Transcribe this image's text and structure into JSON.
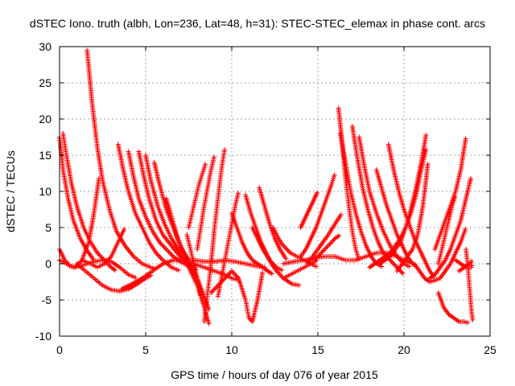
{
  "chart_data": {
    "type": "scatter",
    "title": "dSTEC Iono. truth (albh, Lon=236, Lat=48, h=31): STEC-STEC_elemax in phase cont. arcs",
    "xlabel": "GPS time / hours of day 076 of year 2015",
    "ylabel": "dSTEC  / TECUs",
    "xlim": [
      0,
      25
    ],
    "ylim": [
      -10,
      30
    ],
    "xticks": [
      "0",
      "5",
      "10",
      "15",
      "20",
      "25"
    ],
    "yticks": [
      "-10",
      "-5",
      "0",
      "5",
      "10",
      "15",
      "20",
      "25",
      "30"
    ],
    "grid": true,
    "marker": "+",
    "color": "#ff0000",
    "arcs": [
      {
        "x": [
          0,
          0.3,
          0.6,
          0.9,
          1.3,
          1.7,
          2.0,
          2.3
        ],
        "y": [
          2.0,
          0.5,
          -0.3,
          -0.5,
          0.5,
          3.0,
          7.0,
          12.0
        ]
      },
      {
        "x": [
          0,
          0.2,
          0.5,
          0.8,
          1.2,
          1.6,
          2.0
        ],
        "y": [
          17.5,
          13.0,
          9.0,
          6.0,
          3.5,
          1.8,
          0.5
        ]
      },
      {
        "x": [
          0.2,
          0.4,
          0.7,
          1.0,
          1.4,
          1.8,
          2.2,
          2.6,
          3.0,
          3.3
        ],
        "y": [
          18.0,
          15.0,
          11.0,
          8.0,
          5.0,
          3.0,
          1.5,
          0.5,
          -0.5,
          -1.0
        ]
      },
      {
        "x": [
          1.6,
          1.9,
          2.2,
          2.5,
          2.9,
          3.3,
          3.8,
          4.3,
          4.8,
          5.3,
          5.6
        ],
        "y": [
          29.5,
          22.0,
          16.0,
          11.5,
          7.5,
          4.5,
          2.5,
          1.0,
          0.0,
          -0.5,
          -0.8
        ]
      },
      {
        "x": [
          0,
          0.4,
          0.8,
          1.2,
          1.6,
          2.0,
          2.5,
          3.0,
          3.5,
          4.0,
          4.5
        ],
        "y": [
          0.5,
          0.0,
          -0.5,
          -0.3,
          0.0,
          0.3,
          0.5,
          0.3,
          -0.5,
          -1.5,
          -2.0
        ]
      },
      {
        "x": [
          1.0,
          1.5,
          2.0,
          2.5,
          3.0,
          3.5,
          4.0,
          4.5,
          5.0,
          5.4
        ],
        "y": [
          0,
          -1.0,
          -2.0,
          -3.0,
          -3.6,
          -3.8,
          -3.5,
          -2.8,
          -2.0,
          -1.5
        ]
      },
      {
        "x": [
          1.3,
          1.8,
          2.2,
          2.6,
          3.0,
          3.4,
          3.8
        ],
        "y": [
          0.5,
          0.0,
          -0.5,
          0.0,
          1.0,
          3.0,
          5.0
        ]
      },
      {
        "x": [
          3.4,
          3.7,
          4.0,
          4.4,
          4.8,
          5.2,
          5.6,
          6.0,
          6.5,
          7.0
        ],
        "y": [
          16.5,
          13.0,
          10.0,
          7.0,
          5.0,
          3.0,
          1.5,
          0.5,
          -0.5,
          -1.0
        ]
      },
      {
        "x": [
          4.0,
          4.3,
          4.6,
          5.0,
          5.4,
          5.8,
          6.2,
          6.6,
          7.0,
          7.4,
          7.8
        ],
        "y": [
          15.5,
          12.0,
          9.0,
          6.5,
          4.5,
          3.0,
          2.0,
          1.0,
          0.3,
          -0.2,
          -0.5
        ]
      },
      {
        "x": [
          4.6,
          4.9,
          5.2,
          5.6,
          6.0,
          6.5,
          7.0,
          7.5,
          8.0
        ],
        "y": [
          15.5,
          12.0,
          9.0,
          6.0,
          4.0,
          2.5,
          1.0,
          0.0,
          -1.0
        ]
      },
      {
        "x": [
          5.0,
          5.3,
          5.7,
          6.1,
          6.5,
          7.0,
          7.5,
          8.0,
          8.4,
          8.7
        ],
        "y": [
          15.0,
          11.5,
          8.0,
          5.5,
          3.5,
          1.5,
          -0.5,
          -3.0,
          -6.0,
          -8.5
        ]
      },
      {
        "x": [
          5.5,
          5.8,
          6.2,
          6.6,
          7.0,
          7.5,
          8.0,
          8.4,
          8.7
        ],
        "y": [
          14.0,
          11.0,
          7.5,
          5.0,
          2.5,
          0.5,
          -2.0,
          -4.5,
          -6.5
        ]
      },
      {
        "x": [
          6.2,
          6.5,
          6.8,
          7.1,
          7.4,
          7.7,
          8.0
        ],
        "y": [
          9.0,
          6.5,
          4.0,
          2.0,
          0.5,
          -1.0,
          -2.0
        ]
      },
      {
        "x": [
          3.6,
          4.2,
          4.8,
          5.4,
          6.0,
          6.6,
          7.2,
          7.8,
          8.4,
          9.0,
          9.6,
          10.0,
          10.5
        ],
        "y": [
          -3.5,
          -2.8,
          -2.0,
          -1.0,
          0.0,
          0.5,
          0.5,
          0.0,
          -0.5,
          -1.0,
          -1.5,
          -2.0,
          -2.3
        ]
      },
      {
        "x": [
          6.0,
          6.6,
          7.2,
          7.8,
          8.4,
          9.0,
          9.6,
          10.2,
          10.8,
          11.4,
          12.0
        ],
        "y": [
          0.0,
          0.5,
          0.5,
          0.5,
          0.3,
          0.3,
          0.5,
          0.3,
          0.0,
          -0.3,
          -0.5
        ]
      },
      {
        "x": [
          7.4,
          7.6,
          7.8,
          8.0,
          8.2
        ],
        "y": [
          4.0,
          2.0,
          0.0,
          -2.0,
          -4.5
        ]
      },
      {
        "x": [
          8.4,
          8.6,
          8.8,
          9.0,
          9.2,
          9.4,
          9.6
        ],
        "y": [
          -8.0,
          -4.0,
          0.0,
          5.0,
          9.0,
          13.0,
          16.0
        ]
      },
      {
        "x": [
          8.0,
          8.2,
          8.4,
          8.6,
          8.8,
          9.0
        ],
        "y": [
          2.0,
          5.0,
          8.0,
          10.5,
          13.0,
          15.0
        ]
      },
      {
        "x": [
          7.5,
          7.7,
          7.9,
          8.1,
          8.3,
          8.5
        ],
        "y": [
          5.0,
          7.0,
          9.0,
          11.0,
          12.5,
          14.0
        ]
      },
      {
        "x": [
          9.2,
          9.4,
          9.6,
          9.8,
          10.0,
          10.2,
          10.4
        ],
        "y": [
          -4.5,
          -2.0,
          0.5,
          3.0,
          5.5,
          8.0,
          10.0
        ]
      },
      {
        "x": [
          8.8,
          9.2,
          9.6,
          10.0,
          10.4,
          10.8,
          11.0,
          11.2,
          11.5,
          11.8
        ],
        "y": [
          -4.0,
          -3.0,
          -2.0,
          -1.0,
          -2.0,
          -5.0,
          -7.5,
          -8.0,
          -5.0,
          -1.0
        ]
      },
      {
        "x": [
          10.0,
          10.3,
          10.6,
          10.9,
          11.2,
          11.5,
          11.8,
          12.1,
          12.4
        ],
        "y": [
          7.0,
          5.0,
          3.0,
          1.5,
          0.5,
          0.0,
          -0.5,
          -1.0,
          -1.5
        ]
      },
      {
        "x": [
          10.8,
          11.1,
          11.4,
          11.7,
          12.0,
          12.3,
          12.6,
          13.0,
          13.5,
          14.0
        ],
        "y": [
          9.5,
          7.0,
          5.0,
          3.0,
          1.5,
          0.0,
          -1.0,
          -2.0,
          -2.8,
          -3.0
        ]
      },
      {
        "x": [
          11.2,
          11.5,
          11.8,
          12.2,
          12.6,
          13.0
        ],
        "y": [
          5.0,
          3.5,
          2.0,
          0.5,
          -0.5,
          -1.0
        ]
      },
      {
        "x": [
          11.6,
          11.9,
          12.2,
          12.5,
          12.8,
          13.2
        ],
        "y": [
          10.5,
          8.0,
          5.5,
          3.5,
          2.0,
          0.5
        ]
      },
      {
        "x": [
          12.4,
          12.7,
          13.0,
          13.4,
          13.8,
          14.2,
          14.6,
          15.0
        ],
        "y": [
          5.0,
          3.5,
          2.5,
          1.5,
          1.0,
          0.5,
          0.0,
          -0.5
        ]
      },
      {
        "x": [
          13.0,
          13.4,
          13.8,
          14.2,
          14.6,
          15.0
        ],
        "y": [
          -2.0,
          -1.5,
          -1.0,
          -0.5,
          0.0,
          0.5
        ]
      },
      {
        "x": [
          14.0,
          14.3,
          14.6,
          14.9,
          15.2,
          15.5,
          15.8,
          16.0
        ],
        "y": [
          1.0,
          2.0,
          3.5,
          5.0,
          7.0,
          9.0,
          11.0,
          12.5
        ]
      },
      {
        "x": [
          14.4,
          14.7,
          15.0,
          15.3,
          15.6,
          16.0,
          16.4
        ],
        "y": [
          0.0,
          1.0,
          2.0,
          3.0,
          4.0,
          5.5,
          7.0
        ]
      },
      {
        "x": [
          14.0,
          14.2,
          14.4,
          14.6,
          14.8,
          15.0
        ],
        "y": [
          5.0,
          6.0,
          7.0,
          8.0,
          9.0,
          10.0
        ]
      },
      {
        "x": [
          13.0,
          13.6,
          14.2,
          14.8,
          15.4,
          16.0,
          16.6,
          17.2,
          17.8,
          18.4,
          19.0,
          19.6,
          20.0,
          20.4
        ],
        "y": [
          0.0,
          0.3,
          0.5,
          0.8,
          1.0,
          1.0,
          0.5,
          0.5,
          1.0,
          1.5,
          1.5,
          1.0,
          0.5,
          0.0
        ]
      },
      {
        "x": [
          14.8,
          15.2,
          15.6,
          16.0,
          16.3
        ],
        "y": [
          0.5,
          1.5,
          2.5,
          3.5,
          4.0
        ]
      },
      {
        "x": [
          16.2,
          16.4,
          16.6,
          16.8,
          17.0,
          17.2,
          17.4
        ],
        "y": [
          21.5,
          17.0,
          12.0,
          8.0,
          4.5,
          2.0,
          0.5
        ]
      },
      {
        "x": [
          16.3,
          16.6,
          16.9,
          17.2,
          17.5,
          17.8,
          18.1,
          18.4,
          18.8
        ],
        "y": [
          18.0,
          14.0,
          10.0,
          7.0,
          4.5,
          2.5,
          1.0,
          0.0,
          -0.5
        ]
      },
      {
        "x": [
          17.0,
          17.3,
          17.6,
          17.9,
          18.2,
          18.5,
          18.8,
          19.2,
          19.6,
          20.0
        ],
        "y": [
          19.0,
          14.5,
          10.5,
          7.5,
          5.0,
          3.0,
          1.5,
          0.5,
          -0.5,
          -1.5
        ]
      },
      {
        "x": [
          17.4,
          17.7,
          18.0,
          18.4,
          18.8,
          19.2,
          19.6,
          20.0,
          20.4
        ],
        "y": [
          17.5,
          13.5,
          10.0,
          7.0,
          4.5,
          2.5,
          1.0,
          0.0,
          -0.5
        ]
      },
      {
        "x": [
          18.4,
          18.7,
          19.0,
          19.3,
          19.6,
          19.9,
          20.2,
          20.5,
          20.8
        ],
        "y": [
          13.0,
          10.5,
          8.0,
          6.0,
          4.0,
          2.5,
          1.0,
          0.0,
          -0.5
        ]
      },
      {
        "x": [
          19.1,
          19.4,
          19.7,
          20.0,
          20.3,
          20.6,
          20.9,
          21.2,
          21.5,
          21.8
        ],
        "y": [
          16.5,
          13.0,
          10.0,
          7.5,
          5.5,
          3.5,
          2.0,
          0.5,
          -1.0,
          -2.0
        ]
      },
      {
        "x": [
          18.0,
          18.3,
          18.6,
          18.9,
          19.2,
          19.5,
          19.8,
          20.1,
          20.4,
          20.7,
          21.0,
          21.3
        ],
        "y": [
          -0.5,
          0.0,
          0.5,
          1.0,
          1.5,
          2.5,
          3.5,
          5.0,
          7.5,
          10.5,
          14.0,
          18.0
        ]
      },
      {
        "x": [
          18.6,
          18.9,
          19.2,
          19.5,
          19.8,
          20.1,
          20.4,
          20.7,
          21.0,
          21.3
        ],
        "y": [
          0.0,
          0.5,
          1.0,
          2.0,
          3.0,
          5.0,
          7.0,
          9.5,
          13.0,
          16.0
        ]
      },
      {
        "x": [
          19.6,
          19.9,
          20.2,
          20.5,
          20.8,
          21.1,
          21.4
        ],
        "y": [
          -1.0,
          0.0,
          1.0,
          2.0,
          4.0,
          8.0,
          14.0
        ]
      },
      {
        "x": [
          20.6,
          20.9,
          21.2,
          21.5,
          21.8,
          22.1,
          22.4,
          22.7,
          23.0,
          23.3,
          23.6
        ],
        "y": [
          0.0,
          -1.0,
          -2.0,
          -2.5,
          -2.3,
          -2.0,
          -1.0,
          0.0,
          1.5,
          3.0,
          5.0
        ]
      },
      {
        "x": [
          21.5,
          21.8,
          22.1,
          22.4,
          22.7,
          23.0,
          23.3,
          23.6,
          23.9
        ],
        "y": [
          -2.0,
          -1.5,
          -0.5,
          0.5,
          2.0,
          4.0,
          6.0,
          9.0,
          12.0
        ]
      },
      {
        "x": [
          21.8,
          22.1,
          22.4,
          22.7,
          23.0,
          23.3,
          23.6
        ],
        "y": [
          2.0,
          4.0,
          6.0,
          8.0,
          10.0,
          13.0,
          17.5
        ]
      },
      {
        "x": [
          22.0,
          22.2,
          22.4,
          22.6,
          22.8,
          23.0
        ],
        "y": [
          0.0,
          2.0,
          4.0,
          6.0,
          8.0,
          9.5
        ]
      },
      {
        "x": [
          22.0,
          22.3,
          22.6,
          22.9,
          23.2,
          23.5,
          23.8
        ],
        "y": [
          -4.0,
          -6.0,
          -7.0,
          -7.5,
          -8.0,
          -8.0,
          -8.2
        ]
      },
      {
        "x": [
          23.0,
          23.3,
          23.6,
          23.9,
          24.0
        ],
        "y": [
          0.5,
          0.0,
          -0.5,
          -0.5,
          0.0
        ]
      },
      {
        "x": [
          23.6,
          23.7,
          23.8,
          23.9,
          24.0
        ],
        "y": [
          2.0,
          0.0,
          -3.0,
          -6.0,
          -8.0
        ]
      },
      {
        "x": [
          23.2,
          23.5,
          23.8,
          24.0
        ],
        "y": [
          -1.0,
          -0.5,
          0.0,
          0.5
        ]
      }
    ]
  }
}
